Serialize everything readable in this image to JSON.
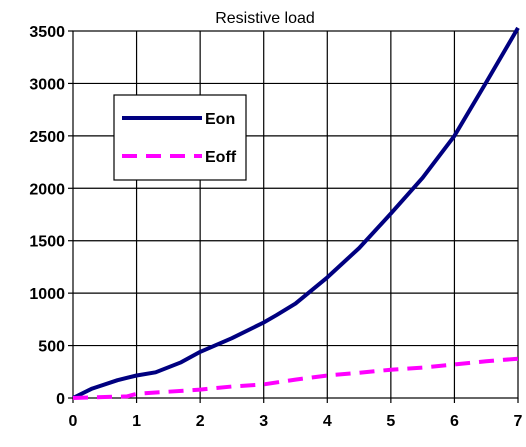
{
  "chart_data": {
    "type": "line",
    "title": "Resistive load",
    "xlabel": "",
    "ylabel": "",
    "xlim": [
      0,
      7
    ],
    "ylim": [
      0,
      3500
    ],
    "x_ticks": [
      "0",
      "1",
      "2",
      "3",
      "4",
      "5",
      "6",
      "7"
    ],
    "y_ticks": [
      "0",
      "500",
      "1000",
      "1500",
      "2000",
      "2500",
      "3000",
      "3500"
    ],
    "grid": true,
    "legend_position": "upper-left inside plot",
    "series": [
      {
        "name": "Eon",
        "color": "#000080",
        "style": "solid",
        "points": [
          [
            0,
            0
          ],
          [
            0.3,
            90
          ],
          [
            0.7,
            170
          ],
          [
            1.0,
            215
          ],
          [
            1.3,
            245
          ],
          [
            1.7,
            340
          ],
          [
            2.0,
            440
          ],
          [
            2.5,
            570
          ],
          [
            3.0,
            720
          ],
          [
            3.2,
            790
          ],
          [
            3.5,
            900
          ],
          [
            4.0,
            1150
          ],
          [
            4.5,
            1430
          ],
          [
            5.0,
            1760
          ],
          [
            5.5,
            2100
          ],
          [
            6.0,
            2500
          ],
          [
            6.5,
            3010
          ],
          [
            7.0,
            3530
          ]
        ]
      },
      {
        "name": "Eoff",
        "color": "#FF00FF",
        "style": "dashed",
        "points": [
          [
            0,
            0
          ],
          [
            0.5,
            10
          ],
          [
            0.85,
            15
          ],
          [
            1.0,
            40
          ],
          [
            1.5,
            60
          ],
          [
            2.0,
            80
          ],
          [
            2.5,
            110
          ],
          [
            3.0,
            130
          ],
          [
            3.5,
            175
          ],
          [
            4.0,
            215
          ],
          [
            4.5,
            240
          ],
          [
            5.0,
            270
          ],
          [
            5.5,
            290
          ],
          [
            6.0,
            320
          ],
          [
            6.5,
            350
          ],
          [
            7.0,
            375
          ]
        ]
      }
    ]
  }
}
